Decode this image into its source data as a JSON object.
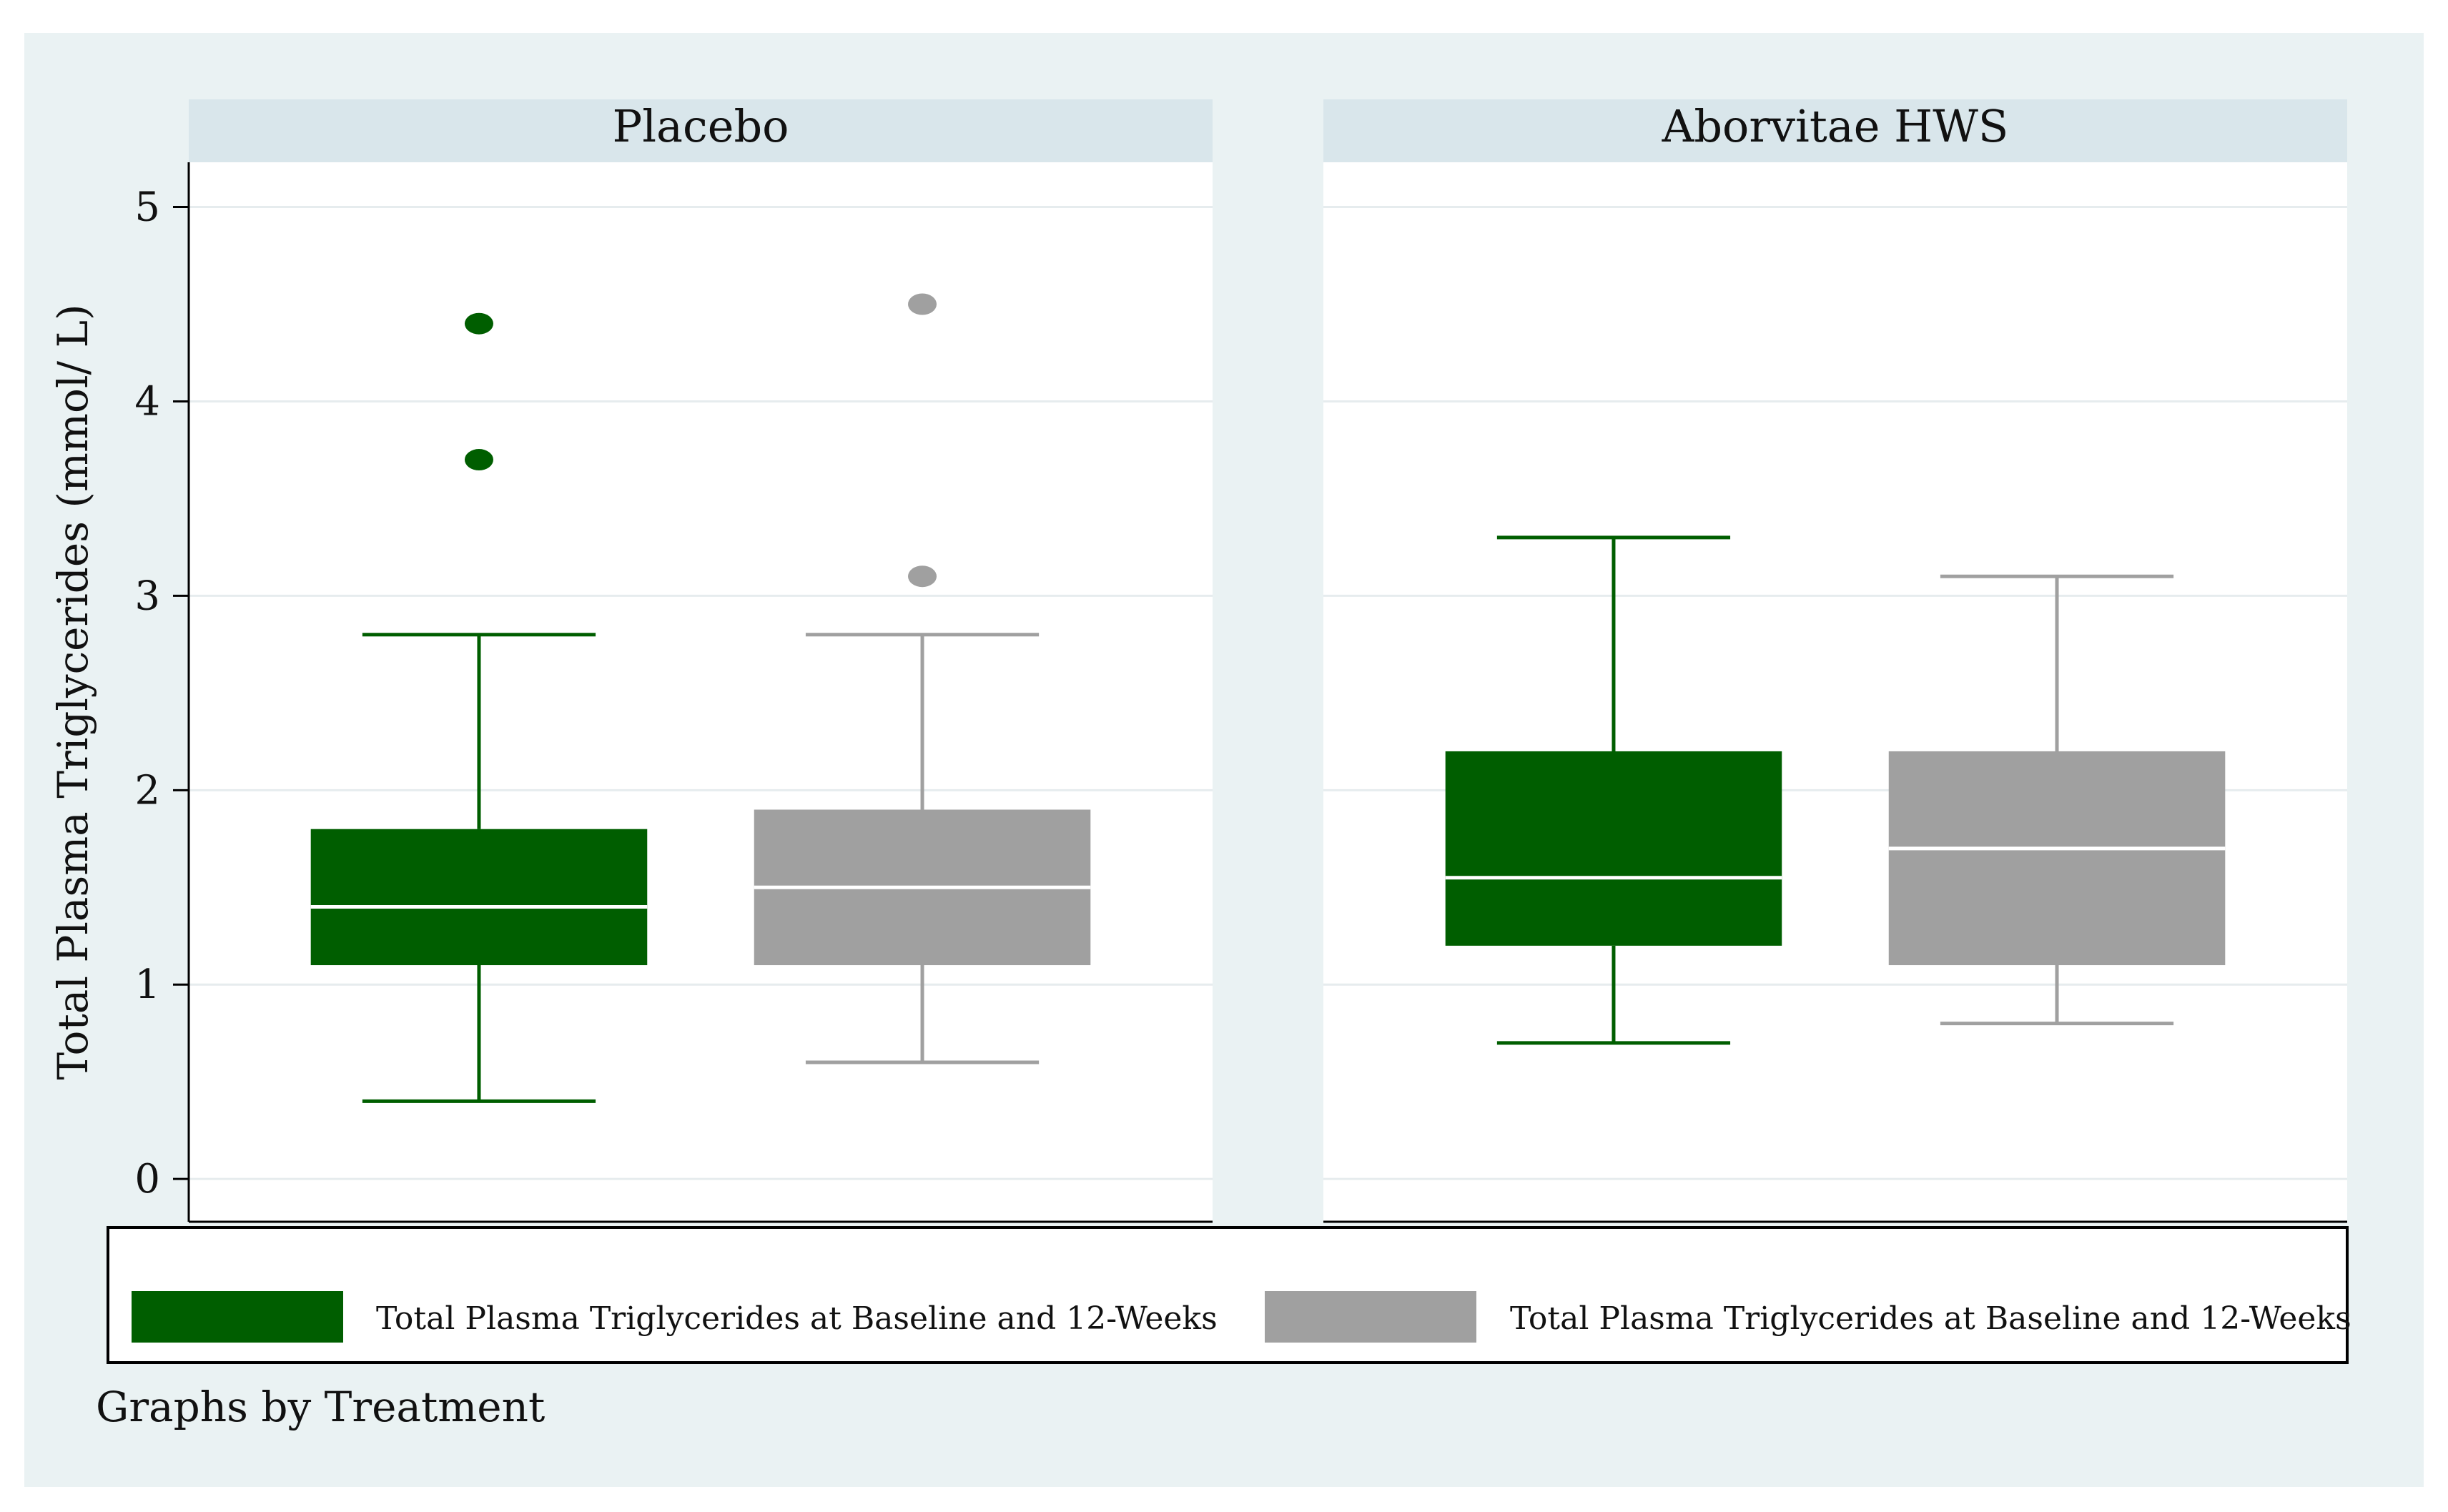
{
  "colors": {
    "outer_background": "#eaf2f3",
    "panel_background": "#ffffff",
    "strip_background": "#d9e6eb",
    "gridline": "#e6ecee",
    "green": "#005e00",
    "gray": "#a0a0a0",
    "median_line": "#ffffff",
    "axis": "#000000"
  },
  "chart_data": {
    "type": "box",
    "ylabel": "Total Plasma Triglycerides (mmol/ L)",
    "ylim": [
      -0.22,
      5.23
    ],
    "yticks": [
      0,
      1,
      2,
      3,
      4,
      5
    ],
    "grid": true,
    "note": "Graphs by Treatment",
    "legend": {
      "placement": "bottom",
      "entries": [
        {
          "label": "Total Plasma Triglycerides at Baseline and 12-Weeks",
          "color": "#005e00"
        },
        {
          "label": "Total Plasma Triglycerides at Baseline and 12-Weeks",
          "color": "#a0a0a0"
        }
      ]
    },
    "panels": [
      {
        "title": "Placebo",
        "boxes": [
          {
            "color": "#005e00",
            "whisker_low": 0.4,
            "q1": 1.1,
            "median": 1.4,
            "q3": 1.8,
            "whisker_high": 2.8,
            "outliers": [
              3.7,
              4.4
            ]
          },
          {
            "color": "#a0a0a0",
            "whisker_low": 0.6,
            "q1": 1.1,
            "median": 1.5,
            "q3": 1.9,
            "whisker_high": 2.8,
            "outliers": [
              3.1,
              4.5
            ]
          }
        ]
      },
      {
        "title": "Aborvitae HWS",
        "boxes": [
          {
            "color": "#005e00",
            "whisker_low": 0.7,
            "q1": 1.2,
            "median": 1.55,
            "q3": 2.2,
            "whisker_high": 3.3,
            "outliers": []
          },
          {
            "color": "#a0a0a0",
            "whisker_low": 0.8,
            "q1": 1.1,
            "median": 1.7,
            "q3": 2.2,
            "whisker_high": 3.1,
            "outliers": []
          }
        ]
      }
    ]
  }
}
